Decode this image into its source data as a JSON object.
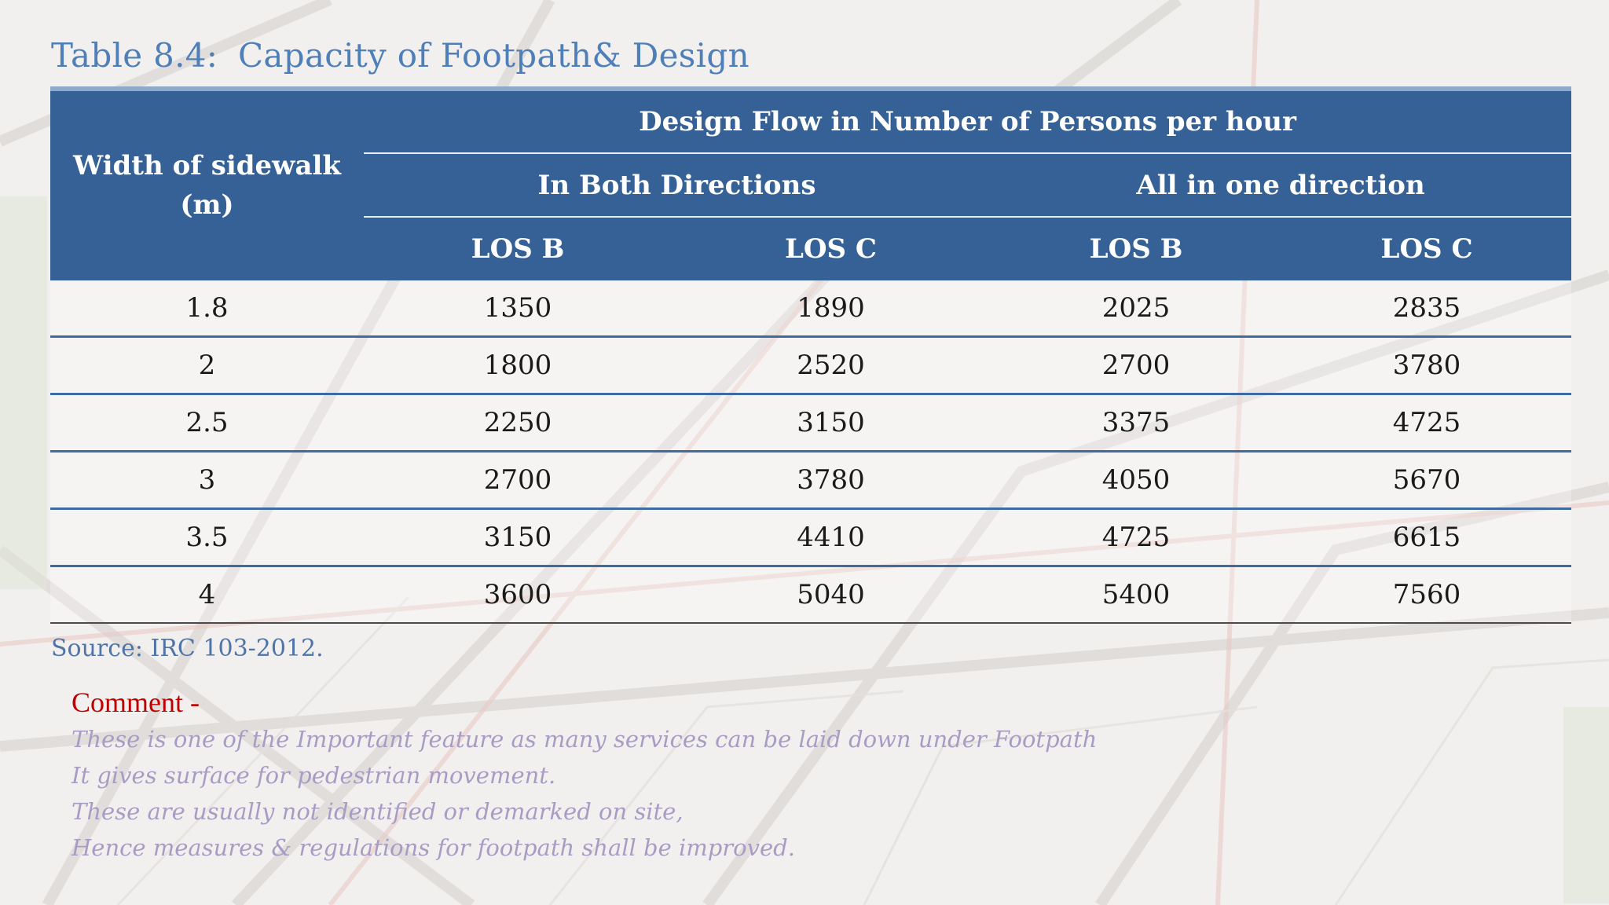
{
  "title": {
    "number": "Table 8.4:",
    "text": "Capacity of Footpath& Design"
  },
  "table": {
    "header": {
      "width_col": "Width of sidewalk (m)",
      "flow_group": "Design Flow in Number of Persons per hour",
      "both_directions": "In Both Directions",
      "one_direction": "All in one direction",
      "los_b": "LOS B",
      "los_c": "LOS C"
    },
    "rows": [
      [
        "1.8",
        "1350",
        "1890",
        "2025",
        "2835"
      ],
      [
        "2",
        "1800",
        "2520",
        "2700",
        "3780"
      ],
      [
        "2.5",
        "2250",
        "3150",
        "3375",
        "4725"
      ],
      [
        "3",
        "2700",
        "3780",
        "4050",
        "5670"
      ],
      [
        "3.5",
        "3150",
        "4410",
        "4725",
        "6615"
      ],
      [
        "4",
        "3600",
        "5040",
        "5400",
        "7560"
      ]
    ]
  },
  "source": "Source: IRC 103-2012.",
  "comment": {
    "heading": "Comment -",
    "lines": [
      "These is one of the Important feature as many services can be laid  down under Footpath",
      "It gives surface for pedestrian movement.",
      "These are usually not identified or demarked on site,",
      "Hence measures & regulations for footpath shall be improved."
    ]
  },
  "colors": {
    "header_fill": "#356196",
    "title": "#4f7fb8",
    "comment_heading": "#c00000",
    "comment_text": "#a89cc4"
  }
}
